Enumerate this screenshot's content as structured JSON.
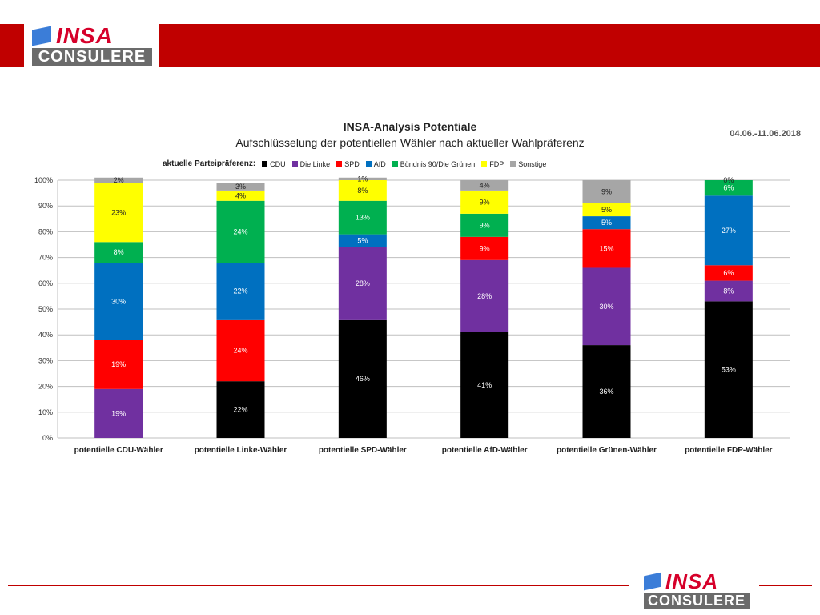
{
  "brand": {
    "name": "INSA",
    "sub": "CONSULERE"
  },
  "header": {
    "title": "INSA-Analysis Potentiale",
    "subtitle": "Aufschlüsselung der potentiellen Wähler nach aktueller Wahlpräferenz",
    "date": "04.06.-11.06.2018"
  },
  "legend": {
    "title": "aktuelle Parteipräferenz:"
  },
  "colors": {
    "CDU": "#000000",
    "Die Linke": "#7030a0",
    "SPD": "#ff0000",
    "AfD": "#0070c0",
    "Bündnis 90/Die Grünen": "#00b050",
    "FDP": "#ffff00",
    "Sonstige": "#a6a6a6",
    "brand_red": "#c00000"
  },
  "chart_data": {
    "type": "bar",
    "stacked": true,
    "ylim": [
      0,
      100
    ],
    "yticks": [
      "0%",
      "10%",
      "20%",
      "30%",
      "40%",
      "50%",
      "60%",
      "70%",
      "80%",
      "90%",
      "100%"
    ],
    "grid": true,
    "legend_position": "top",
    "categories": [
      "potentielle CDU-Wähler",
      "potentielle Linke-Wähler",
      "potentielle SPD-Wähler",
      "potentielle AfD-Wähler",
      "potentielle Grünen-Wähler",
      "potentielle FDP-Wähler"
    ],
    "series": [
      {
        "name": "CDU",
        "values": [
          0,
          22,
          46,
          41,
          36,
          53
        ],
        "labels": [
          "",
          "22%",
          "46%",
          "41%",
          "36%",
          "53%"
        ]
      },
      {
        "name": "Die Linke",
        "values": [
          19,
          0,
          28,
          28,
          30,
          8
        ],
        "labels": [
          "19%",
          "",
          "28%",
          "28%",
          "30%",
          "8%"
        ]
      },
      {
        "name": "SPD",
        "values": [
          19,
          24,
          0,
          9,
          15,
          6
        ],
        "labels": [
          "19%",
          "24%",
          "",
          "9%",
          "15%",
          "6%"
        ]
      },
      {
        "name": "AfD",
        "values": [
          30,
          22,
          5,
          0,
          5,
          27
        ],
        "labels": [
          "30%",
          "22%",
          "5%",
          "",
          "5%",
          "27%"
        ]
      },
      {
        "name": "Bündnis 90/Die Grünen",
        "values": [
          8,
          24,
          13,
          9,
          0,
          6
        ],
        "labels": [
          "8%",
          "24%",
          "13%",
          "9%",
          "",
          "6%"
        ]
      },
      {
        "name": "FDP",
        "values": [
          23,
          4,
          8,
          9,
          5,
          0
        ],
        "labels": [
          "23%",
          "4%",
          "8%",
          "9%",
          "5%",
          "0%"
        ]
      },
      {
        "name": "Sonstige",
        "values": [
          2,
          3,
          1,
          4,
          9,
          0
        ],
        "labels": [
          "2%",
          "3%",
          "1%",
          "4%",
          "9%",
          ""
        ]
      }
    ]
  }
}
